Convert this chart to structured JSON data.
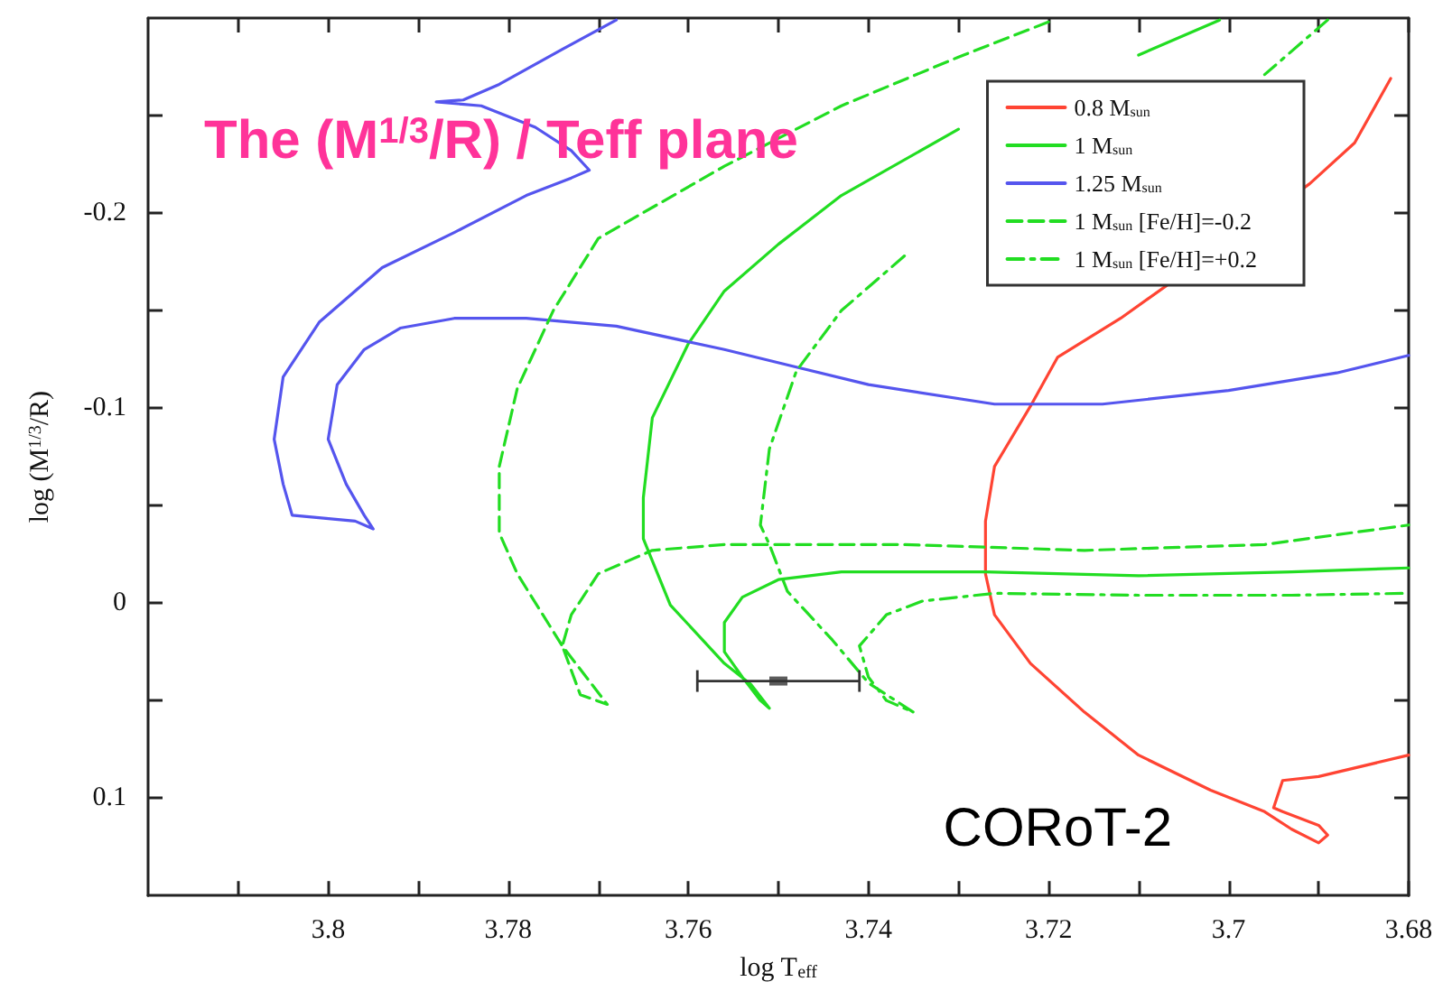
{
  "chart_data": {
    "type": "line",
    "title": "The (M$^{1/3}$/R) / Teff plane",
    "xlabel": "log T$_{eff}$",
    "ylabel": "log (M$^{1/3}$/R)",
    "annotations": [
      "CORoT-2"
    ],
    "xlim": [
      3.82,
      3.68
    ],
    "ylim": [
      0.15,
      -0.3
    ],
    "xticks": [
      {
        "value": 3.81,
        "label": null
      },
      3.8,
      {
        "value": 3.79,
        "label": null
      },
      3.78,
      {
        "value": 3.77,
        "label": null
      },
      3.76,
      {
        "value": 3.75,
        "label": null
      },
      3.74,
      {
        "value": 3.73,
        "label": null
      },
      3.72,
      {
        "value": 3.71,
        "label": null
      },
      3.7,
      {
        "value": 3.69,
        "label": null
      },
      3.68
    ],
    "yticks": [
      {
        "value": -0.25,
        "label": null
      },
      -0.2,
      {
        "value": -0.15,
        "label": null
      },
      -0.1,
      {
        "value": -0.05,
        "label": null
      },
      0,
      {
        "value": 0.05,
        "label": null
      },
      0.1
    ],
    "grid": false,
    "legend": "top right",
    "marker": "none",
    "series": [
      {
        "name": "0.8 M$_{sun}$",
        "color": "#ff4433",
        "line_style": "solid",
        "x": [
          3.682,
          3.686,
          3.691,
          3.712,
          3.719,
          3.722,
          3.726,
          3.727,
          3.727,
          3.726,
          3.722,
          3.716,
          3.71,
          3.702,
          3.696,
          3.693,
          3.69,
          3.689,
          3.69,
          3.694,
          3.695,
          3.694,
          3.69,
          3.68
        ],
        "values": [
          -0.269,
          -0.236,
          -0.215,
          -0.146,
          -0.126,
          -0.101,
          -0.07,
          -0.042,
          -0.015,
          0.006,
          0.031,
          0.056,
          0.078,
          0.096,
          0.107,
          0.116,
          0.123,
          0.119,
          0.114,
          0.107,
          0.105,
          0.091,
          0.089,
          0.078
        ]
      },
      {
        "name": "1 M$_{sun}$",
        "color": "#22dd22",
        "line_style": "solid",
        "x": [
          3.701,
          3.71,
          3.719,
          3.73,
          3.743,
          3.75,
          3.756,
          3.76,
          3.764,
          3.765,
          3.765,
          3.762,
          3.756,
          3.753,
          3.751,
          3.752,
          3.754,
          3.756,
          3.756,
          3.754,
          3.75,
          3.743,
          3.727,
          3.71,
          3.693,
          3.68
        ],
        "values": [
          -0.299,
          -0.281,
          null,
          -0.243,
          -0.209,
          -0.184,
          -0.16,
          -0.133,
          -0.095,
          -0.054,
          -0.033,
          0.001,
          0.031,
          0.042,
          0.054,
          0.05,
          0.038,
          0.025,
          0.01,
          -0.003,
          -0.012,
          -0.016,
          -0.016,
          -0.014,
          -0.016,
          -0.018
        ]
      },
      {
        "name": "1.25 M$_{sun}$",
        "color": "#5555ee",
        "line_style": "solid",
        "x": [
          3.68,
          3.688,
          3.7,
          3.714,
          3.726,
          3.74,
          3.748,
          3.756,
          3.768,
          3.778,
          3.786,
          3.792,
          3.796,
          3.799,
          3.8,
          3.798,
          3.796,
          3.795,
          3.797,
          3.804,
          3.805,
          3.806,
          3.805,
          3.801,
          3.794,
          3.786,
          3.778,
          3.773,
          3.771,
          3.773,
          3.777,
          3.783,
          3.788,
          3.785,
          3.781,
          3.774,
          3.768
        ],
        "values": [
          -0.127,
          -0.118,
          -0.109,
          -0.102,
          -0.102,
          -0.112,
          -0.121,
          -0.13,
          -0.142,
          -0.146,
          -0.146,
          -0.141,
          -0.13,
          -0.112,
          -0.084,
          -0.061,
          -0.045,
          -0.038,
          -0.042,
          -0.045,
          -0.061,
          -0.084,
          -0.116,
          -0.144,
          -0.172,
          -0.19,
          -0.209,
          -0.218,
          -0.222,
          -0.232,
          -0.244,
          -0.255,
          -0.257,
          -0.258,
          -0.266,
          -0.284,
          -0.299
        ]
      },
      {
        "name": "1 M$_{sun}$ [Fe/H]=-0.2",
        "color": "#22dd22",
        "line_style": "dashed",
        "x": [
          3.72,
          3.73,
          3.743,
          3.756,
          3.77,
          3.775,
          3.779,
          3.781,
          3.781,
          3.779,
          3.774,
          3.769,
          3.772,
          3.774,
          3.773,
          3.77,
          3.764,
          3.756,
          3.736,
          3.716,
          3.696,
          3.68
        ],
        "values": [
          -0.298,
          -0.28,
          -0.255,
          -0.224,
          -0.187,
          -0.15,
          -0.11,
          -0.07,
          -0.036,
          -0.015,
          0.022,
          0.052,
          0.047,
          0.022,
          0.006,
          -0.015,
          -0.027,
          -0.03,
          -0.03,
          -0.027,
          -0.03,
          -0.04
        ]
      },
      {
        "name": "1 M$_{sun}$ [Fe/H]=+0.2",
        "color": "#22dd22",
        "line_style": "dashdot",
        "x": [
          3.689,
          3.696,
          3.71,
          3.723,
          3.736,
          3.743,
          3.748,
          3.751,
          3.752,
          3.751,
          3.749,
          3.744,
          3.74,
          3.735,
          3.738,
          3.74,
          3.741,
          3.738,
          3.734,
          3.726,
          3.71,
          3.693,
          3.68
        ],
        "values": [
          -0.299,
          -0.271,
          null,
          null,
          -0.178,
          -0.15,
          -0.119,
          -0.079,
          -0.04,
          -0.03,
          -0.006,
          0.019,
          0.041,
          0.056,
          0.05,
          0.038,
          0.022,
          0.006,
          -0.001,
          -0.005,
          -0.004,
          -0.004,
          -0.005
        ]
      },
      {
        "type": "scatter",
        "color": "#333333",
        "marker": "square",
        "x": [
          3.75
        ],
        "values": [
          0.04
        ],
        "xerrors": [
          0.009
        ]
      }
    ]
  }
}
